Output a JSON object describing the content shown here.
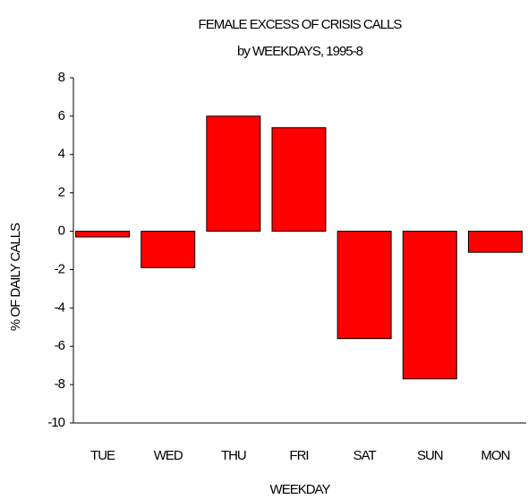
{
  "chart_data": {
    "type": "bar",
    "title": "FEMALE EXCESS OF CRISIS CALLS",
    "subtitle": "by WEEKDAYS, 1995-8",
    "x_label": "WEEKDAY",
    "y_label": "% OF DAILY CALLS",
    "categories": [
      "TUE",
      "WED",
      "THU",
      "FRI",
      "SAT",
      "SUN",
      "MON"
    ],
    "values": [
      -0.3,
      -1.9,
      6.0,
      5.4,
      -5.6,
      -7.7,
      -1.1
    ],
    "color": "#ff0000",
    "ylim": [
      -10,
      8
    ],
    "yticks": [
      -10,
      -8,
      -6,
      -4,
      -2,
      0,
      2,
      4,
      6,
      8
    ],
    "grid": false
  }
}
